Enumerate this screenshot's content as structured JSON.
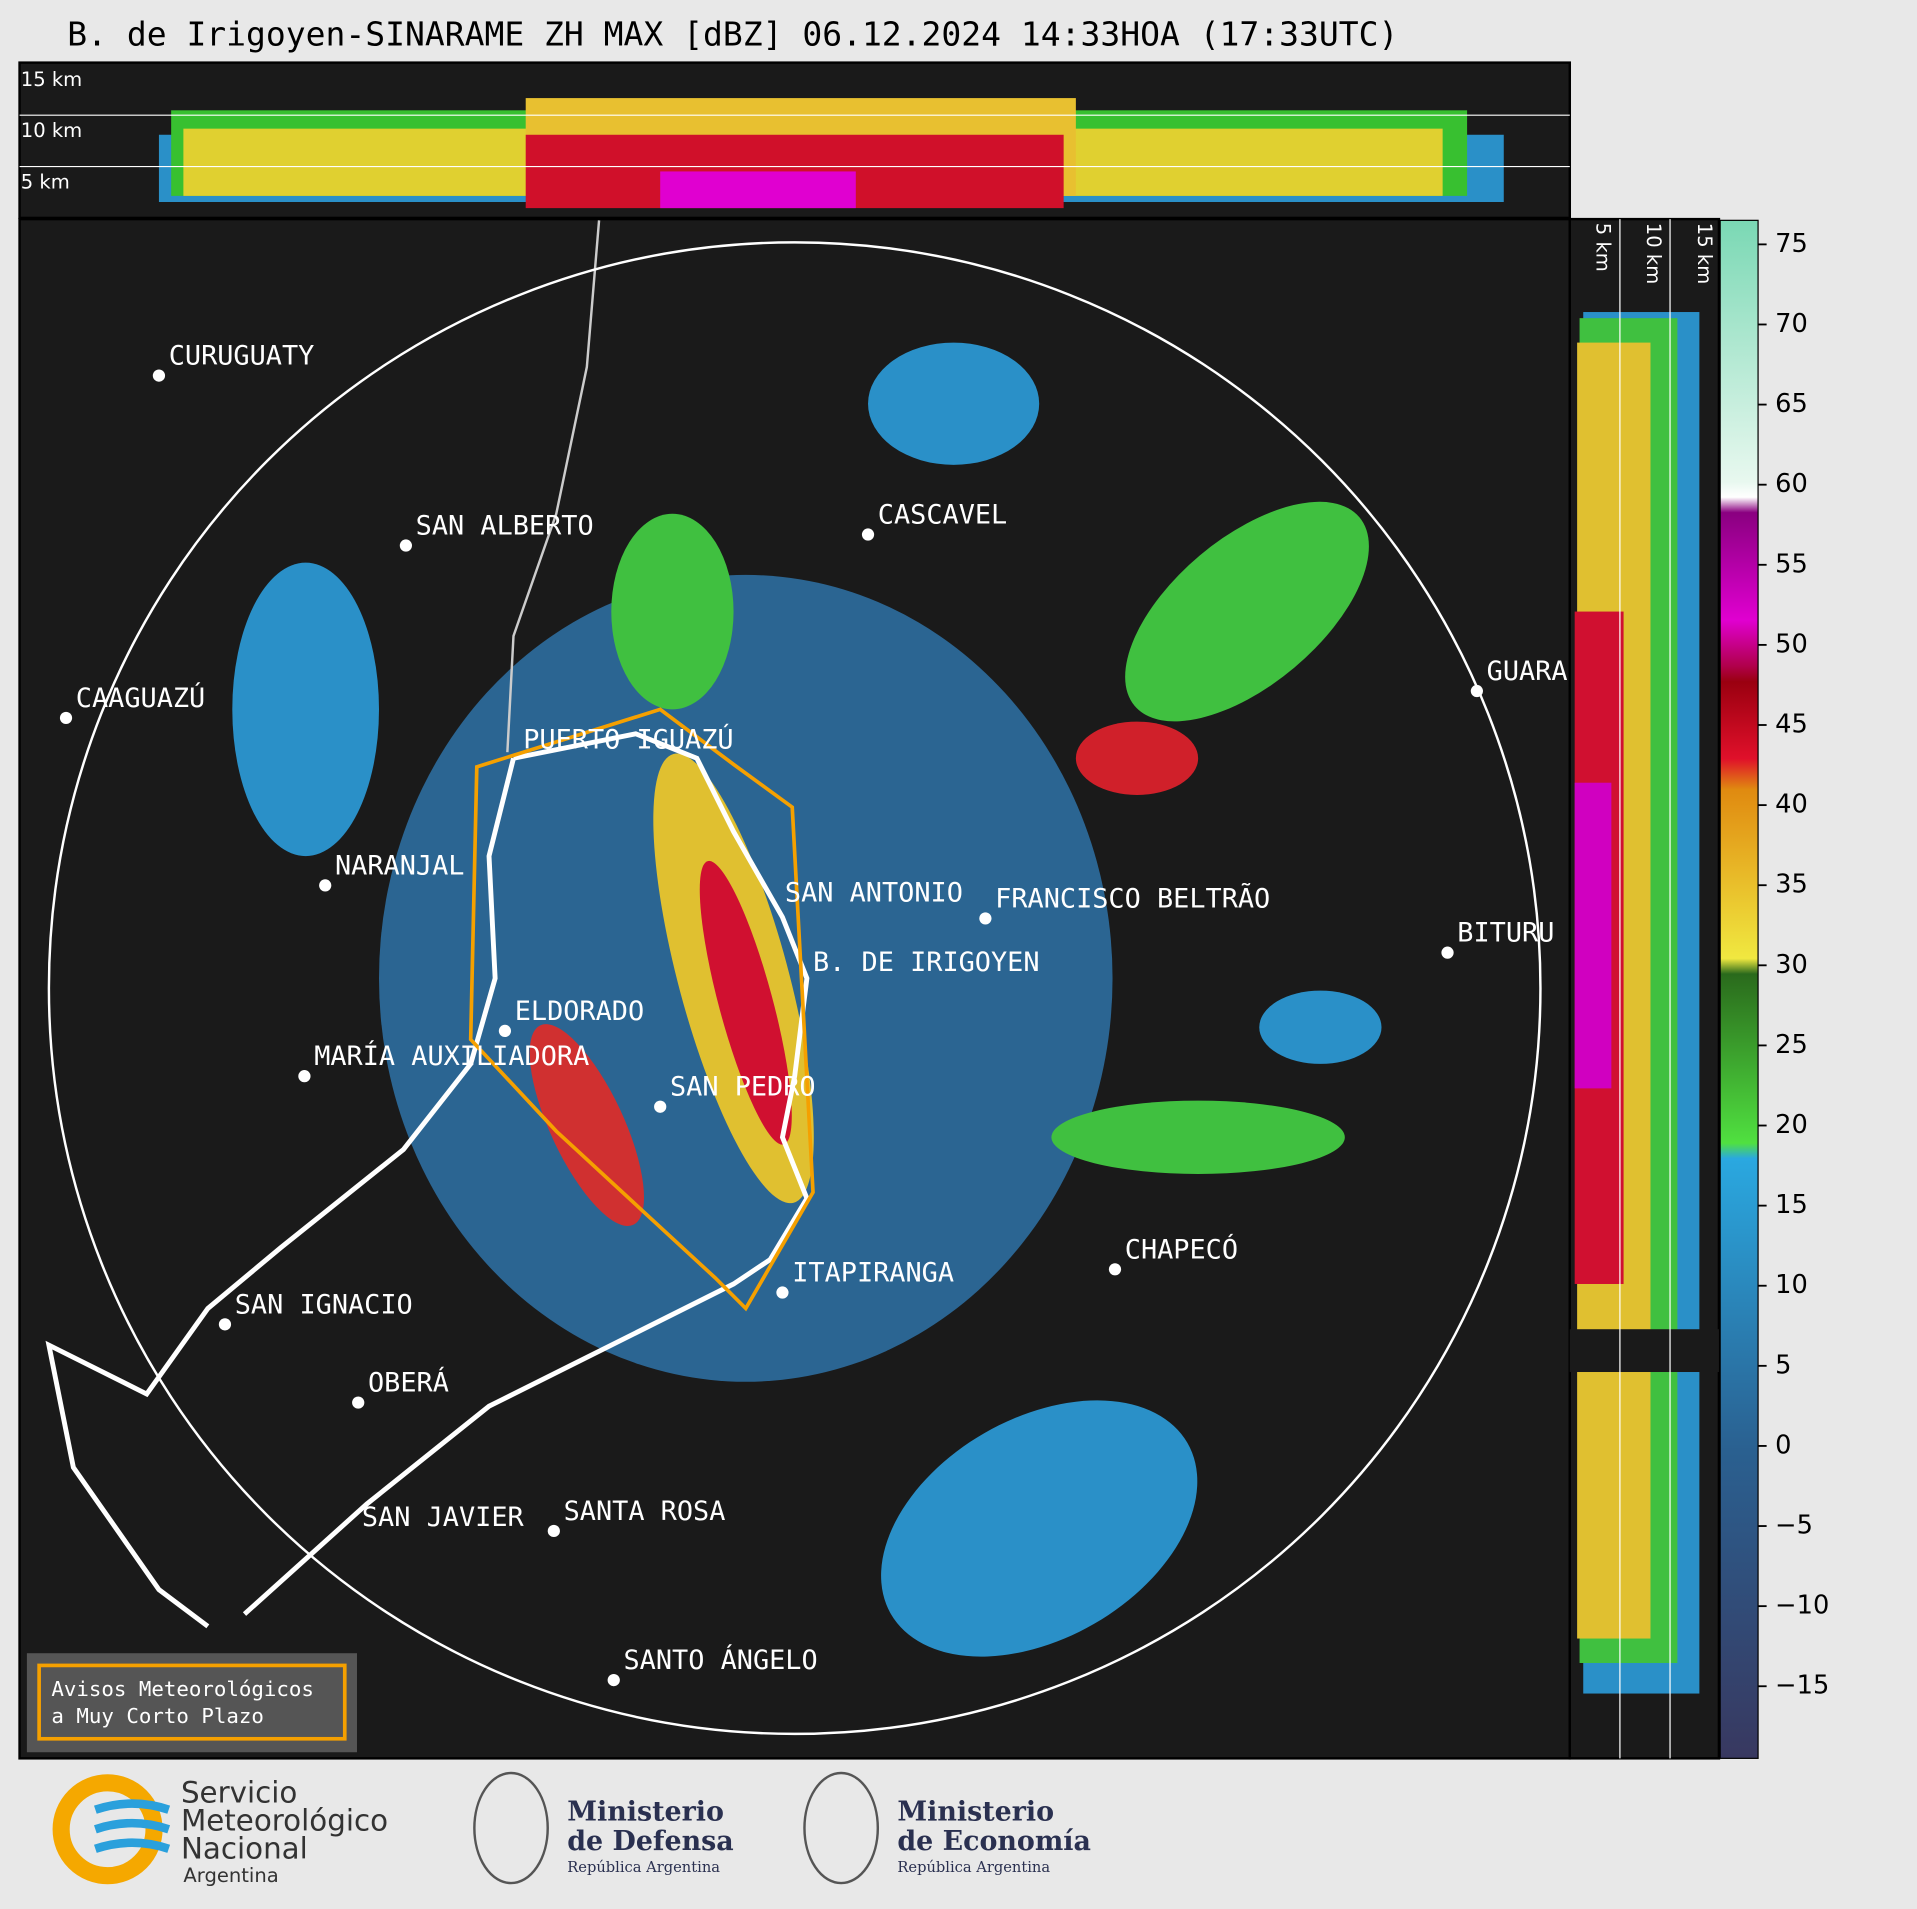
{
  "title": "B. de Irigoyen-SINARAME ZH MAX [dBZ] 06.12.2024 14:33HOA (17:33UTC)",
  "height_labels": [
    "15 km",
    "10 km",
    "5 km"
  ],
  "cities": [
    "CURUGUATY",
    "SAN ALBERTO",
    "CASCAVEL",
    "CAAGUAZÚ",
    "GUARA",
    "PUERTO IGUAZÚ",
    "NARANJAL",
    "SAN ANTONIO",
    "FRANCISCO BELTRÃO",
    "BITURU",
    "B. DE IRIGOYEN",
    "ELDORADO",
    "MARÍA AUXILIADORA",
    "SAN PEDRO",
    "CHAPECÓ",
    "ITAPIRANGA",
    "SAN IGNACIO",
    "OBERÁ",
    "SAN JAVIER",
    "SANTA ROSA",
    "SANTO ÁNGELO"
  ],
  "notice": [
    "Avisos Meteorológicos",
    "a Muy Corto Plazo"
  ],
  "colorbar": {
    "ylim": [
      -19.5,
      76.5
    ],
    "yticks": [
      {
        "value": -15,
        "label": "−15"
      },
      {
        "value": -10,
        "label": "−10"
      },
      {
        "value": -5,
        "label": "−5"
      },
      0,
      5,
      10,
      15,
      20,
      25,
      30,
      35,
      40,
      45,
      50,
      55,
      60,
      65,
      70,
      75
    ]
  },
  "logos": {
    "smn": [
      "Servicio",
      "Meteorológico",
      "Nacional",
      "Argentina"
    ],
    "defensa": [
      "Ministerio",
      "de Defensa",
      "República Argentina"
    ],
    "economia": [
      "Ministerio",
      "de Economía",
      "República Argentina"
    ]
  }
}
